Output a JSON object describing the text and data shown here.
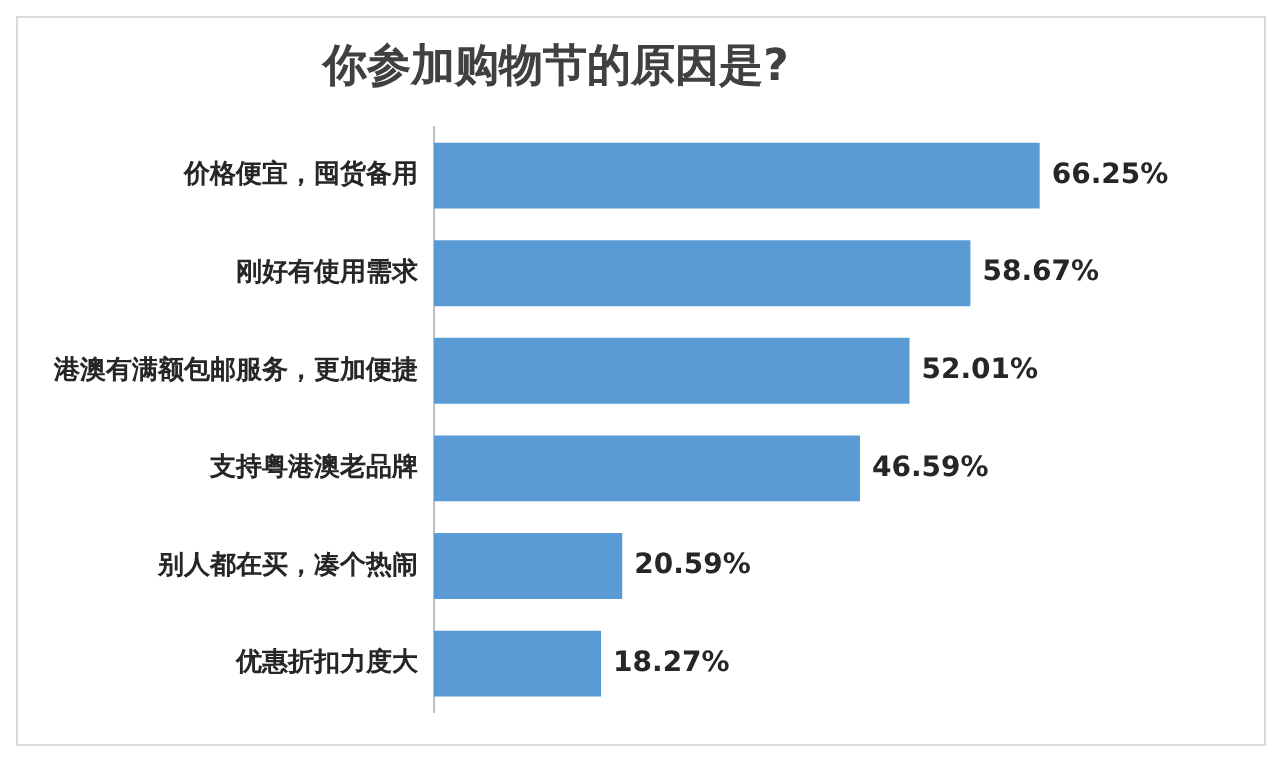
{
  "chart_data": {
    "type": "bar",
    "orientation": "horizontal",
    "title": "你参加购物节的原因是?",
    "categories": [
      "价格便宜，囤货备用",
      "刚好有使用需求",
      "港澳有满额包邮服务，更加便捷",
      "支持粤港澳老品牌",
      "别人都在买，凑个热闹",
      "优惠折扣力度大"
    ],
    "values": [
      66.25,
      58.67,
      52.01,
      46.59,
      20.59,
      18.27
    ],
    "value_labels": [
      "66.25%",
      "58.67%",
      "52.01%",
      "46.59%",
      "20.59%",
      "18.27%"
    ],
    "color": "#5b9bd5",
    "legend": false
  }
}
